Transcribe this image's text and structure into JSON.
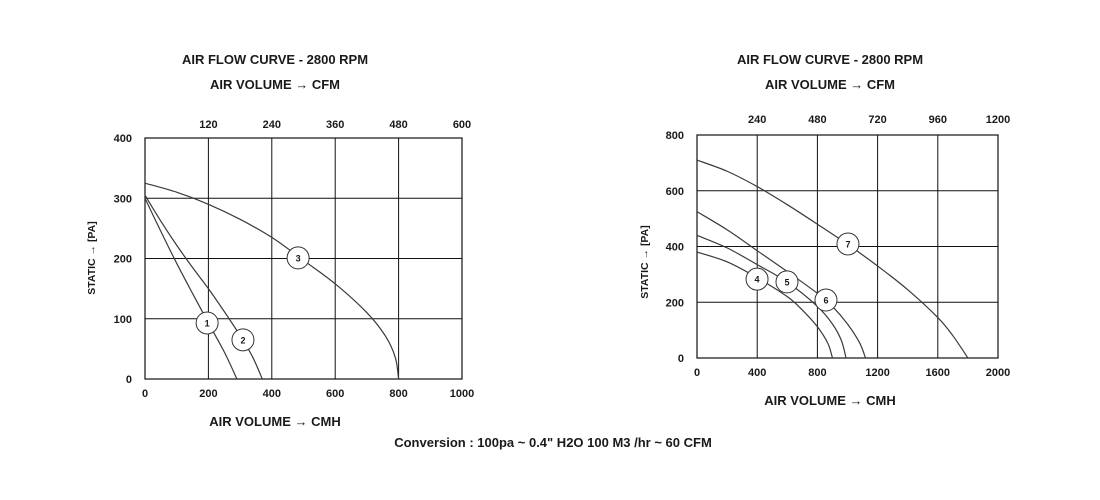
{
  "chart_data": [
    {
      "type": "line",
      "title": "AIR FLOW CURVE - 2800 RPM",
      "x2label": "AIR VOLUME → CFM",
      "xlabel": "AIR VOLUME → CMH",
      "ylabel": "STATIC → [PA]",
      "xlim": [
        0,
        1000
      ],
      "ylim": [
        0,
        400
      ],
      "xticks": [
        0,
        200,
        400,
        600,
        800,
        1000
      ],
      "yticks": [
        0,
        100,
        200,
        300,
        400
      ],
      "x2ticks": [
        120,
        240,
        360,
        480,
        600
      ],
      "grid": true,
      "series": [
        {
          "name": "1",
          "x": [
            0,
            50,
            100,
            150,
            200,
            250,
            290
          ],
          "y": [
            300,
            245,
            192,
            142,
            93,
            45,
            0
          ]
        },
        {
          "name": "2",
          "x": [
            0,
            50,
            100,
            150,
            200,
            250,
            300,
            340,
            370
          ],
          "y": [
            305,
            262,
            222,
            185,
            150,
            112,
            72,
            36,
            0
          ]
        },
        {
          "name": "3",
          "x": [
            0,
            100,
            200,
            300,
            400,
            500,
            600,
            700,
            760,
            790,
            800
          ],
          "y": [
            325,
            310,
            290,
            265,
            235,
            197,
            158,
            110,
            70,
            35,
            0
          ]
        }
      ]
    },
    {
      "type": "line",
      "title": "AIR FLOW CURVE - 2800 RPM",
      "x2label": "AIR VOLUME → CFM",
      "xlabel": "AIR VOLUME → CMH",
      "ylabel": "STATIC → [PA]",
      "xlim": [
        0,
        2000
      ],
      "ylim": [
        0,
        800
      ],
      "xticks": [
        0,
        400,
        800,
        1200,
        1600,
        2000
      ],
      "yticks": [
        0,
        200,
        400,
        600,
        800
      ],
      "x2ticks": [
        240,
        480,
        720,
        960,
        1200
      ],
      "grid": true,
      "series": [
        {
          "name": "4",
          "x": [
            0,
            200,
            400,
            600,
            700,
            800,
            870,
            900
          ],
          "y": [
            380,
            345,
            288,
            220,
            172,
            112,
            52,
            0
          ]
        },
        {
          "name": "5",
          "x": [
            0,
            200,
            400,
            600,
            800,
            900,
            960,
            990
          ],
          "y": [
            440,
            395,
            335,
            272,
            185,
            122,
            62,
            0
          ]
        },
        {
          "name": "6",
          "x": [
            0,
            200,
            400,
            600,
            800,
            900,
            1000,
            1080,
            1120
          ],
          "y": [
            525,
            460,
            385,
            310,
            232,
            185,
            122,
            55,
            0
          ]
        },
        {
          "name": "7",
          "x": [
            0,
            200,
            400,
            600,
            800,
            1000,
            1200,
            1400,
            1600,
            1700,
            1800
          ],
          "y": [
            710,
            670,
            615,
            550,
            480,
            408,
            330,
            245,
            145,
            80,
            0
          ]
        }
      ]
    }
  ],
  "footer": {
    "conversion": "Conversion : 100pa ~ 0.4\" H2O 100 M3 /hr ~ 60 CFM"
  }
}
